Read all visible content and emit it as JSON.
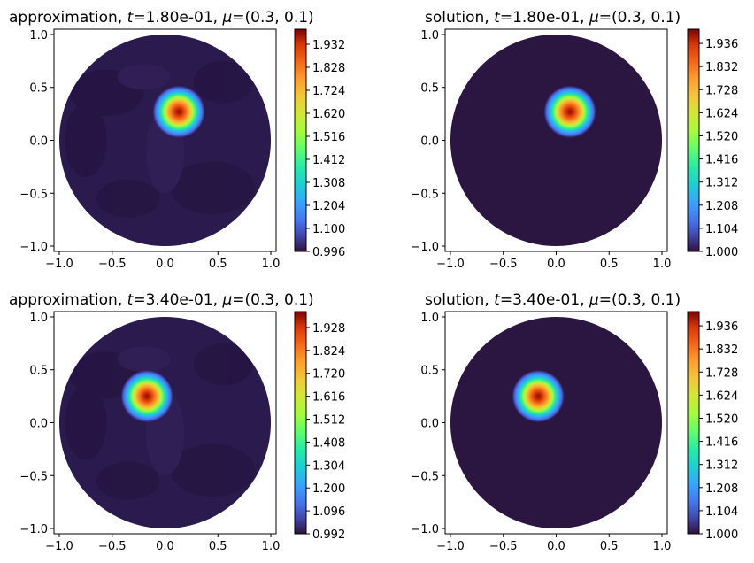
{
  "chart_data": [
    {
      "type": "heatmap",
      "kind": "approximation",
      "title_prefix": "approximation, ",
      "t_value": "1.80e-01",
      "mu_value": "(0.3, 0.1)",
      "xlim": [
        -1.05,
        1.05
      ],
      "ylim": [
        -1.05,
        1.05
      ],
      "xticks": [
        "−1.0",
        "−0.5",
        "0.0",
        "0.5",
        "1.0"
      ],
      "yticks": [
        "1.0",
        "0.5",
        "0.0",
        "−0.5",
        "−1.0"
      ],
      "peak": {
        "x": 0.13,
        "y": 0.27
      },
      "background_color": "#2b1a4d",
      "colorbar": {
        "min": 0.996,
        "max": 2.0,
        "ticks": [
          "1.932",
          "1.828",
          "1.724",
          "1.620",
          "1.516",
          "1.412",
          "1.308",
          "1.204",
          "1.100",
          "0.996"
        ]
      }
    },
    {
      "type": "heatmap",
      "kind": "solution",
      "title_prefix": "solution, ",
      "t_value": "1.80e-01",
      "mu_value": "(0.3, 0.1)",
      "xlim": [
        -1.05,
        1.05
      ],
      "ylim": [
        -1.05,
        1.05
      ],
      "xticks": [
        "−1.0",
        "−0.5",
        "0.0",
        "0.5",
        "1.0"
      ],
      "yticks": [
        "1.0",
        "0.5",
        "0.0",
        "−0.5",
        "−1.0"
      ],
      "peak": {
        "x": 0.13,
        "y": 0.27
      },
      "background_color": "#2a1640",
      "colorbar": {
        "min": 1.0,
        "max": 2.0,
        "ticks": [
          "1.936",
          "1.832",
          "1.728",
          "1.624",
          "1.520",
          "1.416",
          "1.312",
          "1.208",
          "1.104",
          "1.000"
        ]
      }
    },
    {
      "type": "heatmap",
      "kind": "approximation",
      "title_prefix": "approximation, ",
      "t_value": "3.40e-01",
      "mu_value": "(0.3, 0.1)",
      "xlim": [
        -1.05,
        1.05
      ],
      "ylim": [
        -1.05,
        1.05
      ],
      "xticks": [
        "−1.0",
        "−0.5",
        "0.0",
        "0.5",
        "1.0"
      ],
      "yticks": [
        "1.0",
        "0.5",
        "0.0",
        "−0.5",
        "−1.0"
      ],
      "peak": {
        "x": -0.17,
        "y": 0.25
      },
      "background_color": "#2b1a4d",
      "colorbar": {
        "min": 0.992,
        "max": 2.0,
        "ticks": [
          "1.928",
          "1.824",
          "1.720",
          "1.616",
          "1.512",
          "1.408",
          "1.304",
          "1.200",
          "1.096",
          "0.992"
        ]
      }
    },
    {
      "type": "heatmap",
      "kind": "solution",
      "title_prefix": "solution, ",
      "t_value": "3.40e-01",
      "mu_value": "(0.3, 0.1)",
      "xlim": [
        -1.05,
        1.05
      ],
      "ylim": [
        -1.05,
        1.05
      ],
      "xticks": [
        "−1.0",
        "−0.5",
        "0.0",
        "0.5",
        "1.0"
      ],
      "yticks": [
        "1.0",
        "0.5",
        "0.0",
        "−0.5",
        "−1.0"
      ],
      "peak": {
        "x": -0.17,
        "y": 0.25
      },
      "background_color": "#2a1640",
      "colorbar": {
        "min": 1.0,
        "max": 2.0,
        "ticks": [
          "1.936",
          "1.832",
          "1.728",
          "1.624",
          "1.520",
          "1.416",
          "1.312",
          "1.208",
          "1.104",
          "1.000"
        ]
      }
    }
  ]
}
